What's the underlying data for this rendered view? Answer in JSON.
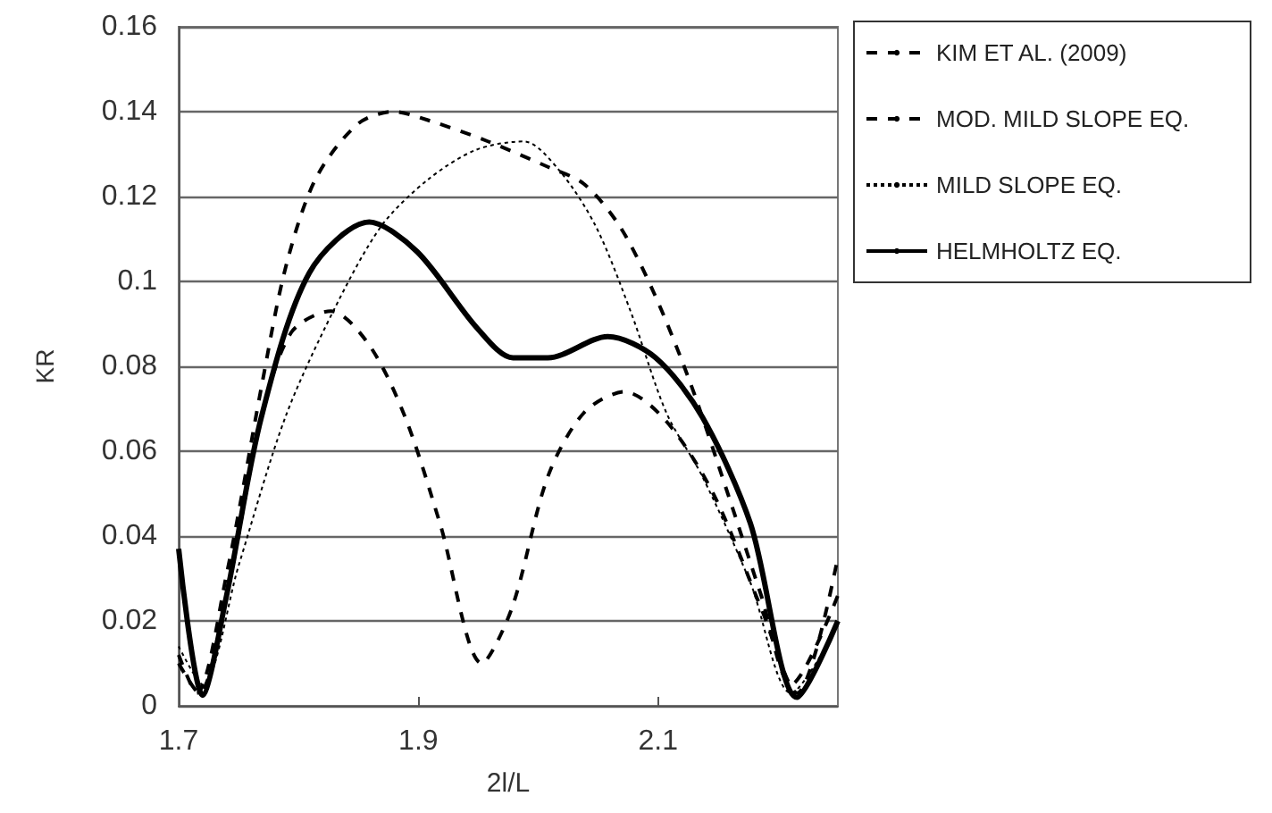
{
  "chart_data": {
    "type": "line",
    "xlabel": "2l/L",
    "ylabel": "KR",
    "xlim": [
      1.7,
      2.25
    ],
    "xticks": [
      1.7,
      1.9,
      2.1
    ],
    "ylim": [
      0,
      0.16
    ],
    "yticks": [
      0,
      0.02,
      0.04,
      0.06,
      0.08,
      0.1,
      0.12,
      0.14,
      0.16
    ],
    "grid": "y",
    "legend": "right",
    "marker": "none",
    "series": [
      {
        "name": "KIM ET AL. (2009)",
        "color": "#000000",
        "line_style": "dashed",
        "x": [
          1.7,
          1.717,
          1.74,
          1.769,
          1.794,
          1.827,
          1.859,
          1.889,
          1.918,
          1.953,
          1.978,
          2.008,
          2.038,
          2.072,
          2.107,
          2.146,
          2.186,
          2.216,
          2.25
        ],
        "values": [
          0.01,
          0.003,
          0.026,
          0.068,
          0.088,
          0.093,
          0.085,
          0.068,
          0.043,
          0.01,
          0.023,
          0.054,
          0.069,
          0.074,
          0.067,
          0.05,
          0.023,
          0.003,
          0.035
        ]
      },
      {
        "name": "MOD. MILD SLOPE EQ.",
        "color": "#000000",
        "line_style": "dashed",
        "x": [
          1.7,
          1.715,
          1.74,
          1.769,
          1.789,
          1.814,
          1.849,
          1.879,
          1.908,
          1.958,
          2.008,
          2.038,
          2.068,
          2.097,
          2.127,
          2.157,
          2.186,
          2.211,
          2.25
        ],
        "values": [
          0.012,
          0.003,
          0.031,
          0.075,
          0.103,
          0.124,
          0.137,
          0.14,
          0.138,
          0.133,
          0.127,
          0.123,
          0.113,
          0.097,
          0.076,
          0.051,
          0.026,
          0.005,
          0.026
        ]
      },
      {
        "name": "MILD SLOPE EQ.",
        "color": "#000000",
        "line_style": "dotted",
        "x": [
          1.7,
          1.72,
          1.75,
          1.789,
          1.829,
          1.869,
          1.908,
          1.948,
          1.988,
          2.018,
          2.048,
          2.077,
          2.107,
          2.137,
          2.177,
          2.211,
          2.25
        ],
        "values": [
          0.014,
          0.005,
          0.033,
          0.068,
          0.093,
          0.113,
          0.124,
          0.131,
          0.133,
          0.126,
          0.113,
          0.093,
          0.069,
          0.054,
          0.029,
          0.003,
          0.019
        ]
      },
      {
        "name": "HELMHOLTZ EQ.",
        "color": "#000000",
        "line_style": "solid",
        "x": [
          1.7,
          1.72,
          1.74,
          1.769,
          1.809,
          1.859,
          1.899,
          1.949,
          1.979,
          2.008,
          2.058,
          2.098,
          2.137,
          2.177,
          2.216,
          2.25
        ],
        "values": [
          0.037,
          0.0025,
          0.026,
          0.068,
          0.102,
          0.114,
          0.107,
          0.089,
          0.082,
          0.082,
          0.087,
          0.082,
          0.068,
          0.043,
          0.002,
          0.02
        ]
      }
    ]
  }
}
